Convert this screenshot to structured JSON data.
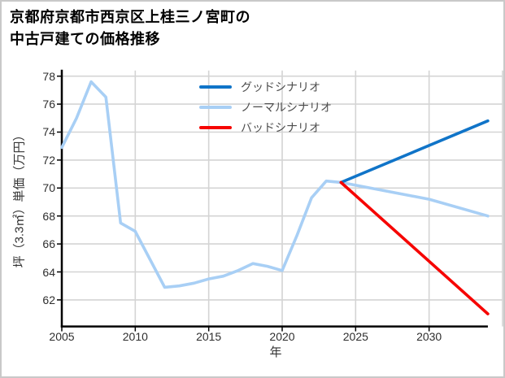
{
  "title": {
    "line1": "京都府京都市西京区上桂三ノ宮町の",
    "line2": "中古戸建ての価格推移"
  },
  "chart_data": {
    "type": "line",
    "title": "京都府京都市西京区上桂三ノ宮町の中古戸建ての価格推移",
    "xlabel": "年",
    "ylabel": "坪（3.3㎡）単価（万円）",
    "xlim": [
      2005,
      2035
    ],
    "ylim": [
      60.1,
      78.4
    ],
    "x_ticks": [
      2005,
      2010,
      2015,
      2020,
      2025,
      2030
    ],
    "y_ticks": [
      62,
      64,
      66,
      68,
      70,
      72,
      74,
      76,
      78
    ],
    "grid": true,
    "legend": {
      "frame": false,
      "position": "upper-center-inside",
      "items": [
        {
          "label": "グッドシナリオ",
          "color": "#1074c8"
        },
        {
          "label": "ノーマルシナリオ",
          "color": "#a8cff5"
        },
        {
          "label": "バッドシナリオ",
          "color": "#f60502"
        }
      ]
    },
    "series": [
      {
        "name": "ノーマルシナリオ",
        "color": "#a8cff5",
        "x": [
          2005,
          2006,
          2007,
          2008,
          2009,
          2010,
          2011,
          2012,
          2013,
          2014,
          2015,
          2016,
          2017,
          2018,
          2019,
          2020,
          2021,
          2022,
          2023,
          2024,
          2030,
          2034
        ],
        "y": [
          72.9,
          75.0,
          77.6,
          76.5,
          67.5,
          66.9,
          64.9,
          62.9,
          63.0,
          63.2,
          63.5,
          63.7,
          64.1,
          64.6,
          64.4,
          64.1,
          66.6,
          69.3,
          70.5,
          70.4,
          69.2,
          68.0
        ]
      },
      {
        "name": "グッドシナリオ",
        "color": "#1074c8",
        "x": [
          2024,
          2034
        ],
        "y": [
          70.4,
          74.8
        ]
      },
      {
        "name": "バッドシナリオ",
        "color": "#f60502",
        "x": [
          2024,
          2034
        ],
        "y": [
          70.4,
          61.0
        ]
      }
    ],
    "colors": {
      "grid": "#d4d4d4",
      "spine": "#000000",
      "tick_text": "#2e2e2e"
    }
  }
}
